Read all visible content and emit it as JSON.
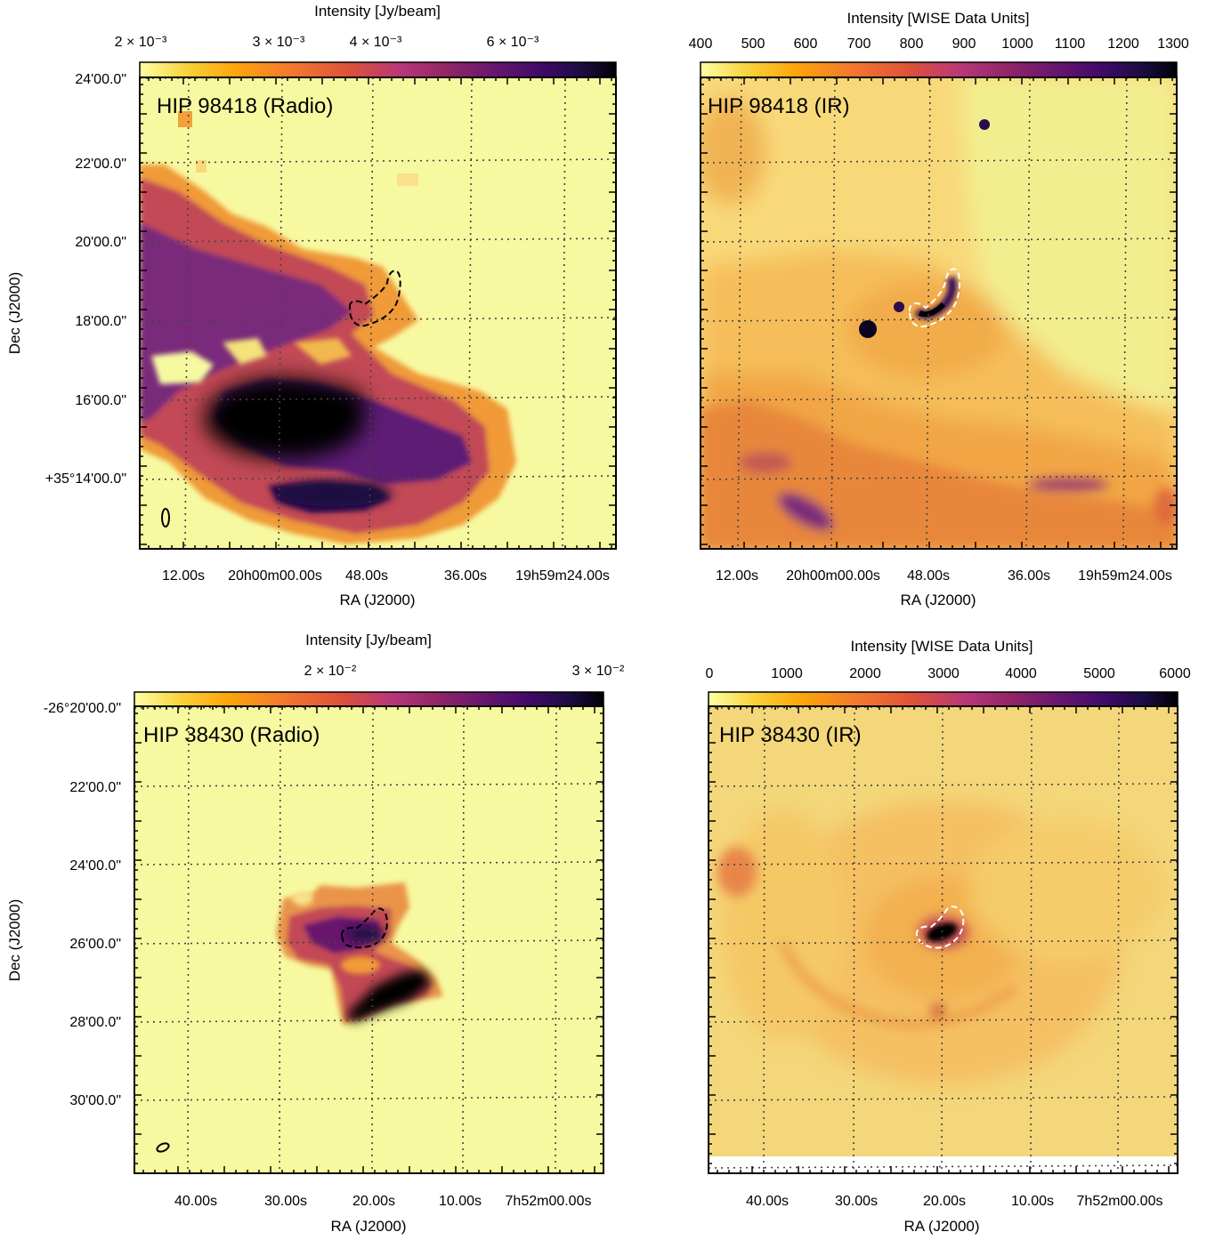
{
  "chart_data": [
    {
      "type": "heatmap",
      "title": "HIP 98418 (Radio)",
      "colorbar_label": "Intensity [Jy/beam]",
      "colorbar_ticks": [
        "2 × 10⁻³",
        "3 × 10⁻³",
        "4 × 10⁻³",
        "6 × 10⁻³"
      ],
      "colorbar_scale": "log",
      "colorbar_range": [
        0.0016,
        0.0085
      ],
      "xlabel": "RA (J2000)",
      "ylabel": "Dec (J2000)",
      "xticks": [
        "12.00s",
        "20h00m00.00s",
        "48.00s",
        "36.00s",
        "19h59m24.00s"
      ],
      "yticks": [
        "24'00.0\"",
        "22'00.0\"",
        "20'00.0\"",
        "18'00.0\"",
        "16'00.0\"",
        "+35°14'00.0\""
      ],
      "grid": true,
      "contour": "dashed black",
      "beam": "ellipse bottom-left",
      "colormap": "inferno_r"
    },
    {
      "type": "heatmap",
      "title": "HIP 98418 (IR)",
      "colorbar_label": "Intensity [WISE Data Units]",
      "colorbar_ticks": [
        "400",
        "500",
        "600",
        "700",
        "800",
        "900",
        "1000",
        "1100",
        "1200",
        "1300"
      ],
      "colorbar_scale": "linear",
      "colorbar_range": [
        400,
        1300
      ],
      "xlabel": "RA (J2000)",
      "xticks": [
        "12.00s",
        "20h00m00.00s",
        "48.00s",
        "36.00s",
        "19h59m24.00s"
      ],
      "grid": true,
      "contour": "dashed white",
      "colormap": "inferno_r"
    },
    {
      "type": "heatmap",
      "title": "HIP 38430 (Radio)",
      "colorbar_label": "Intensity [Jy/beam]",
      "colorbar_ticks": [
        "2 × 10⁻²",
        "3 × 10⁻²"
      ],
      "colorbar_scale": "log",
      "colorbar_range": [
        0.0095,
        0.035
      ],
      "xlabel": "RA (J2000)",
      "ylabel": "Dec (J2000)",
      "xticks": [
        "40.00s",
        "30.00s",
        "20.00s",
        "10.00s",
        "7h52m00.00s"
      ],
      "yticks": [
        "-26°20'00.0\"",
        "22'00.0\"",
        "24'00.0\"",
        "26'00.0\"",
        "28'00.0\"",
        "30'00.0\""
      ],
      "grid": true,
      "contour": "dashed black",
      "beam": "ellipse bottom-left",
      "colormap": "inferno_r"
    },
    {
      "type": "heatmap",
      "title": "HIP 38430 (IR)",
      "colorbar_label": "Intensity [WISE Data Units]",
      "colorbar_ticks": [
        "0",
        "1000",
        "2000",
        "3000",
        "4000",
        "5000",
        "6000"
      ],
      "colorbar_scale": "linear",
      "colorbar_range": [
        0,
        6000
      ],
      "xlabel": "RA (J2000)",
      "xticks": [
        "40.00s",
        "30.00s",
        "20.00s",
        "10.00s",
        "7h52m00.00s"
      ],
      "grid": true,
      "contour": "dashed white",
      "colormap": "inferno_r"
    }
  ],
  "colors": {
    "cmap_stops": [
      "#fcffa4",
      "#f9d13a",
      "#fca50a",
      "#f4772f",
      "#dd513a",
      "#b73779",
      "#932667",
      "#6a176e",
      "#420a68",
      "#1b0c41",
      "#000004"
    ],
    "background_low": "#f7f9a0",
    "ir_background": "#f6d772",
    "grid": "#555555",
    "contour_dark": "#000000",
    "contour_light": "#ffffff"
  }
}
